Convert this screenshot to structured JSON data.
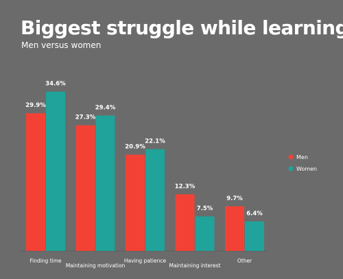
{
  "chart_data": {
    "type": "bar",
    "title": "Biggest struggle while learning",
    "subtitle": "Men versus women",
    "categories": [
      "Finding time",
      "Maintaining motivation",
      "Having patience",
      "Maintaining interest",
      "Other"
    ],
    "series": [
      {
        "name": "Men",
        "color": "#f34235",
        "values": [
          29.9,
          27.3,
          20.9,
          12.3,
          9.7
        ],
        "labels": [
          "29.9%",
          "27.3%",
          "20.9%",
          "12.3%",
          "9.7%"
        ]
      },
      {
        "name": "Women",
        "color": "#1fa39a",
        "values": [
          34.6,
          29.4,
          22.1,
          7.5,
          6.4
        ],
        "labels": [
          "34.6%",
          "29.4%",
          "22.1%",
          "7.5%",
          "6.4%"
        ]
      }
    ],
    "ylim": [
      0,
      35
    ],
    "grid": false,
    "legend_position": "right"
  }
}
